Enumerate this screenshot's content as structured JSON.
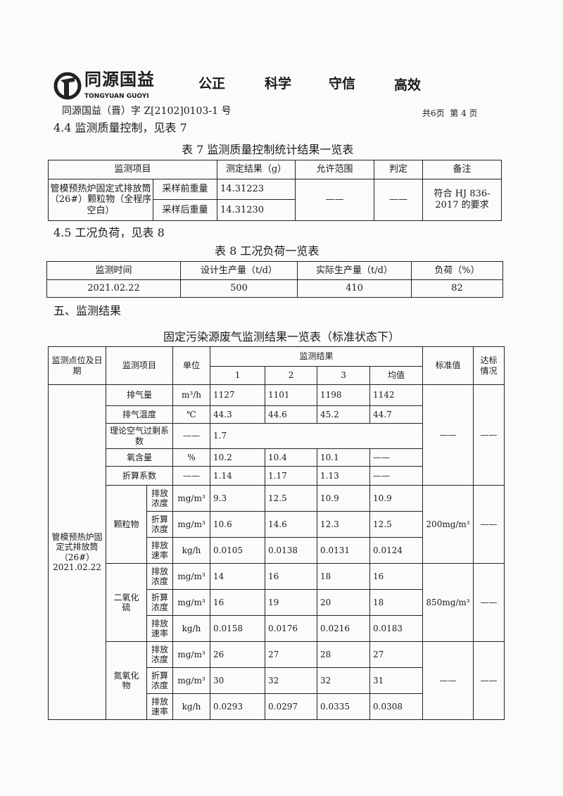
{
  "header": {
    "logo_cn": "同源国益",
    "logo_en": "TONGYUAN GUOYI",
    "slogans": [
      "公正",
      "科学",
      "守信",
      "高效"
    ],
    "doc_no": "同源国益（晋）字 Z[2102]0103-1 号",
    "page_info": "共6页  第 4 页"
  },
  "section44": {
    "title": "4.4 监测质量控制，见表 7"
  },
  "table7": {
    "caption": "表 7 监测质量控制统计结果一览表",
    "headers": [
      "监测项目",
      "测定结果（g）",
      "允许范围",
      "判定",
      "备注"
    ],
    "item": "管模预热炉固定式排放筒（26#）颗粒物（全程序空白）",
    "rows": [
      {
        "label": "采样前重量",
        "value": "14.31223"
      },
      {
        "label": "采样后重量",
        "value": "14.31230"
      }
    ],
    "range": "——",
    "judge": "——",
    "note": "符合 HJ 836-2017 的要求"
  },
  "section45": {
    "title": "4.5 工况负荷，见表 8"
  },
  "table8": {
    "caption": "表 8 工况负荷一览表",
    "headers": [
      "监测时间",
      "设计生产量（t/d）",
      "实际生产量（t/d）",
      "负荷（%）"
    ],
    "row": [
      "2021.02.22",
      "500",
      "410",
      "82"
    ]
  },
  "section5": {
    "title": "五、监测结果"
  },
  "table9": {
    "caption": "固定污染源废气监测结果一览表（标准状态下）",
    "headers": {
      "site": "监测点位及日期",
      "item": "监测项目",
      "unit": "单位",
      "results": "监测结果",
      "cols": [
        "1",
        "2",
        "3",
        "均值"
      ],
      "standard": "标准值",
      "compliance": "达标情况"
    },
    "site": "管模预热炉固定式排放筒（26#）2021.02.22",
    "general_rows": [
      {
        "item": "排气量",
        "unit": "m³/h",
        "values": [
          "1127",
          "1101",
          "1198",
          "1142"
        ]
      },
      {
        "item": "排气温度",
        "unit": "℃",
        "values": [
          "44.3",
          "44.6",
          "45.2",
          "44.7"
        ]
      },
      {
        "item": "理论空气过剩系数",
        "unit": "——",
        "values": [
          "1.7"
        ]
      },
      {
        "item": "氧含量",
        "unit": "%",
        "values": [
          "10.2",
          "10.4",
          "10.1",
          "——"
        ]
      },
      {
        "item": "折算系数",
        "unit": "——",
        "values": [
          "1.14",
          "1.17",
          "1.13",
          "——"
        ]
      }
    ],
    "general_standard": "——",
    "general_compliance": "——",
    "pollutants": [
      {
        "name": "颗粒物",
        "standard": "200mg/m³",
        "compliance": "——",
        "rows": [
          {
            "sub": "排放浓度",
            "unit": "mg/m³",
            "values": [
              "9.3",
              "12.5",
              "10.9",
              "10.9"
            ]
          },
          {
            "sub": "折算浓度",
            "unit": "mg/m³",
            "values": [
              "10.6",
              "14.6",
              "12.3",
              "12.5"
            ]
          },
          {
            "sub": "排放速率",
            "unit": "kg/h",
            "values": [
              "0.0105",
              "0.0138",
              "0.0131",
              "0.0124"
            ]
          }
        ]
      },
      {
        "name": "二氧化硫",
        "standard": "850mg/m³",
        "compliance": "——",
        "rows": [
          {
            "sub": "排放浓度",
            "unit": "mg/m³",
            "values": [
              "14",
              "16",
              "18",
              "16"
            ]
          },
          {
            "sub": "折算浓度",
            "unit": "mg/m³",
            "values": [
              "16",
              "19",
              "20",
              "18"
            ]
          },
          {
            "sub": "排放速率",
            "unit": "kg/h",
            "values": [
              "0.0158",
              "0.0176",
              "0.0216",
              "0.0183"
            ]
          }
        ]
      },
      {
        "name": "氮氧化物",
        "standard": "——",
        "compliance": "——",
        "rows": [
          {
            "sub": "排放浓度",
            "unit": "mg/m³",
            "values": [
              "26",
              "27",
              "28",
              "27"
            ]
          },
          {
            "sub": "折算浓度",
            "unit": "mg/m³",
            "values": [
              "30",
              "32",
              "32",
              "31"
            ]
          },
          {
            "sub": "排放速率",
            "unit": "kg/h",
            "values": [
              "0.0293",
              "0.0297",
              "0.0335",
              "0.0308"
            ]
          }
        ]
      }
    ]
  }
}
